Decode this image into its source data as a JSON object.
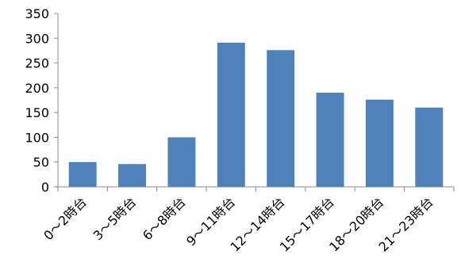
{
  "chart_data": {
    "type": "bar",
    "title": "",
    "xlabel": "",
    "ylabel": "",
    "categories": [
      "0～2時台",
      "3～5時台",
      "6～8時台",
      "9～11時台",
      "12～14時台",
      "15～17時台",
      "18～20時台",
      "21～23時台"
    ],
    "values": [
      50,
      46,
      100,
      291,
      276,
      190,
      176,
      160
    ],
    "ylim": [
      0,
      350
    ],
    "yticks": [
      0,
      50,
      100,
      150,
      200,
      250,
      300,
      350
    ],
    "grid": false,
    "legend": "none",
    "bar_color": "#4F81BD",
    "axis_color": "#8C8C8C"
  }
}
